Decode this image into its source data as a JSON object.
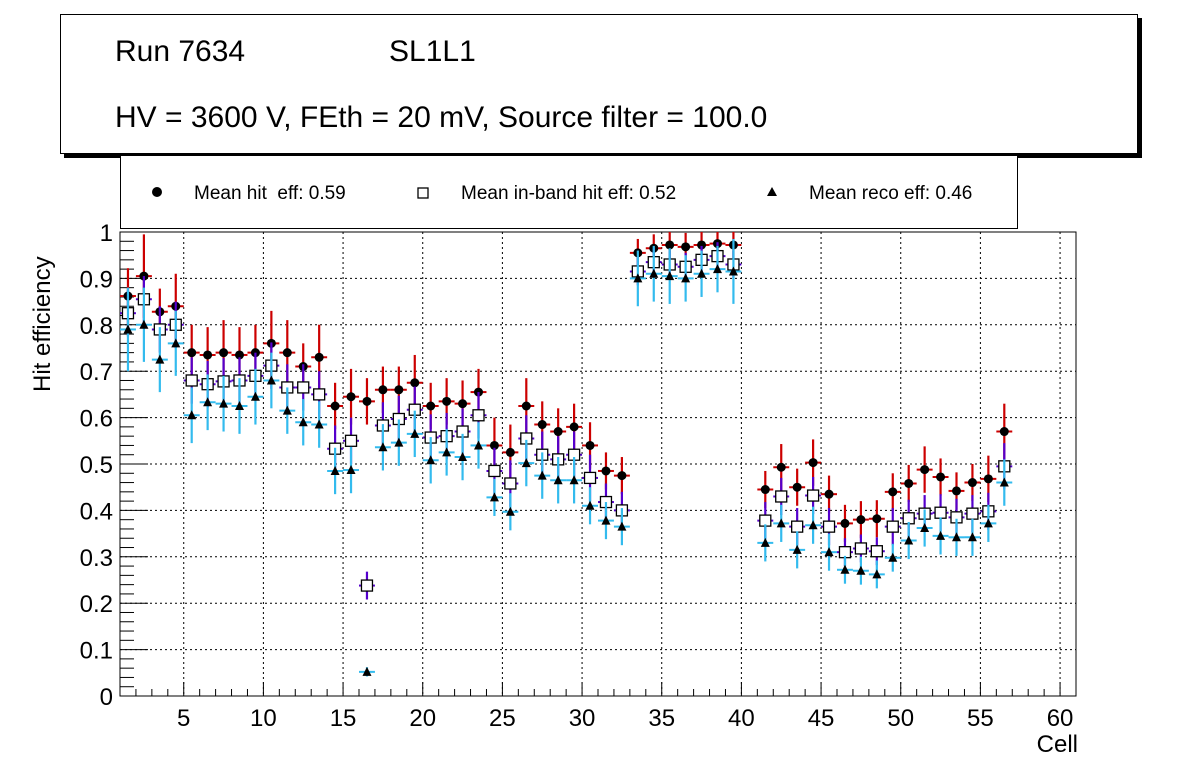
{
  "header": {
    "run_label": "Run 7634",
    "layer_label": "SL1L1",
    "conditions": "HV = 3600 V, FEth = 20 mV, Source filter = 100.0"
  },
  "legend": {
    "hit": "Mean hit  eff: 0.59",
    "inband": "Mean in-band hit eff: 0.52",
    "reco": "Mean reco eff: 0.46"
  },
  "colors": {
    "hit_marker": "#000000",
    "hit_error": "#cc0000",
    "inband_error": "#5500cc",
    "reco_error": "#33bbee"
  },
  "chart_data": {
    "type": "scatter",
    "title": "",
    "xlabel": "Cell",
    "ylabel": "Hit efficiency",
    "xlim": [
      1,
      61
    ],
    "ylim": [
      0,
      1
    ],
    "grid": true,
    "x_ticks": [
      5,
      10,
      15,
      20,
      25,
      30,
      35,
      40,
      45,
      50,
      55,
      60
    ],
    "x_tick_labels": [
      "5",
      "10",
      "15",
      "20",
      "25",
      "30",
      "35",
      "40",
      "45",
      "50",
      "55",
      "60"
    ],
    "y_ticks": [
      0,
      0.1,
      0.2,
      0.3,
      0.4,
      0.5,
      0.6,
      0.7,
      0.8,
      0.9,
      1
    ],
    "y_tick_labels": [
      "0",
      "0.1",
      "0.2",
      "0.3",
      "0.4",
      "0.5",
      "0.6",
      "0.7",
      "0.8",
      "0.9",
      "1"
    ],
    "series": [
      {
        "name": "Mean hit  eff: 0.59",
        "marker": "circle",
        "points": [
          [
            1.5,
            0.862,
            0.06
          ],
          [
            2.5,
            0.905,
            0.09
          ],
          [
            3.5,
            0.828,
            0.05
          ],
          [
            4.5,
            0.84,
            0.07
          ],
          [
            5.5,
            0.74,
            0.06
          ],
          [
            6.5,
            0.735,
            0.06
          ],
          [
            7.5,
            0.74,
            0.07
          ],
          [
            8.5,
            0.735,
            0.06
          ],
          [
            9.5,
            0.74,
            0.06
          ],
          [
            10.5,
            0.76,
            0.07
          ],
          [
            11.5,
            0.74,
            0.07
          ],
          [
            12.5,
            0.71,
            0.05
          ],
          [
            13.5,
            0.73,
            0.07
          ],
          [
            14.5,
            0.625,
            0.05
          ],
          [
            15.5,
            0.645,
            0.06
          ],
          [
            16.5,
            0.635,
            0.05
          ],
          [
            17.5,
            0.66,
            0.05
          ],
          [
            18.5,
            0.66,
            0.05
          ],
          [
            19.5,
            0.675,
            0.06
          ],
          [
            20.5,
            0.625,
            0.05
          ],
          [
            21.5,
            0.635,
            0.05
          ],
          [
            22.5,
            0.63,
            0.05
          ],
          [
            23.5,
            0.655,
            0.05
          ],
          [
            24.5,
            0.54,
            0.06
          ],
          [
            25.5,
            0.525,
            0.06
          ],
          [
            26.5,
            0.625,
            0.06
          ],
          [
            27.5,
            0.585,
            0.05
          ],
          [
            28.5,
            0.57,
            0.05
          ],
          [
            29.5,
            0.58,
            0.05
          ],
          [
            30.5,
            0.54,
            0.05
          ],
          [
            31.5,
            0.485,
            0.04
          ],
          [
            32.5,
            0.475,
            0.04
          ],
          [
            33.5,
            0.955,
            0.03
          ],
          [
            34.5,
            0.965,
            0.03
          ],
          [
            35.5,
            0.972,
            0.03
          ],
          [
            36.5,
            0.968,
            0.03
          ],
          [
            37.5,
            0.972,
            0.03
          ],
          [
            38.5,
            0.975,
            0.03
          ],
          [
            39.5,
            0.972,
            0.03
          ],
          [
            41.5,
            0.445,
            0.04
          ],
          [
            42.5,
            0.493,
            0.05
          ],
          [
            43.5,
            0.45,
            0.04
          ],
          [
            44.5,
            0.503,
            0.05
          ],
          [
            45.5,
            0.435,
            0.04
          ],
          [
            46.5,
            0.372,
            0.04
          ],
          [
            47.5,
            0.38,
            0.04
          ],
          [
            48.5,
            0.382,
            0.04
          ],
          [
            49.5,
            0.44,
            0.04
          ],
          [
            50.5,
            0.458,
            0.04
          ],
          [
            51.5,
            0.488,
            0.05
          ],
          [
            52.5,
            0.472,
            0.04
          ],
          [
            53.5,
            0.442,
            0.04
          ],
          [
            54.5,
            0.46,
            0.04
          ],
          [
            55.5,
            0.468,
            0.05
          ],
          [
            56.5,
            0.57,
            0.06
          ]
        ]
      },
      {
        "name": "Mean in-band hit eff: 0.52",
        "marker": "open-square",
        "points": [
          [
            1.5,
            0.825,
            0.05
          ],
          [
            2.5,
            0.855,
            0.05
          ],
          [
            3.5,
            0.79,
            0.05
          ],
          [
            4.5,
            0.8,
            0.05
          ],
          [
            5.5,
            0.68,
            0.05
          ],
          [
            6.5,
            0.672,
            0.05
          ],
          [
            7.5,
            0.678,
            0.05
          ],
          [
            8.5,
            0.68,
            0.05
          ],
          [
            9.5,
            0.69,
            0.05
          ],
          [
            10.5,
            0.712,
            0.05
          ],
          [
            11.5,
            0.665,
            0.05
          ],
          [
            12.5,
            0.665,
            0.05
          ],
          [
            13.5,
            0.65,
            0.05
          ],
          [
            14.5,
            0.533,
            0.05
          ],
          [
            15.5,
            0.55,
            0.05
          ],
          [
            16.5,
            0.238,
            0.03
          ],
          [
            17.5,
            0.583,
            0.05
          ],
          [
            18.5,
            0.597,
            0.05
          ],
          [
            19.5,
            0.617,
            0.05
          ],
          [
            20.5,
            0.557,
            0.05
          ],
          [
            21.5,
            0.56,
            0.05
          ],
          [
            22.5,
            0.57,
            0.05
          ],
          [
            23.5,
            0.605,
            0.05
          ],
          [
            24.5,
            0.485,
            0.05
          ],
          [
            25.5,
            0.458,
            0.05
          ],
          [
            26.5,
            0.555,
            0.05
          ],
          [
            27.5,
            0.52,
            0.05
          ],
          [
            28.5,
            0.51,
            0.05
          ],
          [
            29.5,
            0.52,
            0.05
          ],
          [
            30.5,
            0.47,
            0.05
          ],
          [
            31.5,
            0.418,
            0.04
          ],
          [
            32.5,
            0.4,
            0.04
          ],
          [
            33.5,
            0.915,
            0.03
          ],
          [
            34.5,
            0.935,
            0.03
          ],
          [
            35.5,
            0.93,
            0.03
          ],
          [
            36.5,
            0.925,
            0.03
          ],
          [
            37.5,
            0.94,
            0.03
          ],
          [
            38.5,
            0.948,
            0.03
          ],
          [
            39.5,
            0.93,
            0.03
          ],
          [
            41.5,
            0.378,
            0.04
          ],
          [
            42.5,
            0.43,
            0.04
          ],
          [
            43.5,
            0.365,
            0.04
          ],
          [
            44.5,
            0.432,
            0.04
          ],
          [
            45.5,
            0.365,
            0.04
          ],
          [
            46.5,
            0.31,
            0.03
          ],
          [
            47.5,
            0.318,
            0.03
          ],
          [
            48.5,
            0.312,
            0.03
          ],
          [
            49.5,
            0.365,
            0.04
          ],
          [
            50.5,
            0.383,
            0.04
          ],
          [
            51.5,
            0.393,
            0.04
          ],
          [
            52.5,
            0.395,
            0.04
          ],
          [
            53.5,
            0.385,
            0.04
          ],
          [
            54.5,
            0.393,
            0.04
          ],
          [
            55.5,
            0.398,
            0.04
          ],
          [
            56.5,
            0.495,
            0.05
          ]
        ]
      },
      {
        "name": "Mean reco eff: 0.46",
        "marker": "triangle",
        "points": [
          [
            1.5,
            0.79,
            0.09
          ],
          [
            2.5,
            0.8,
            0.08
          ],
          [
            3.5,
            0.725,
            0.07
          ],
          [
            4.5,
            0.76,
            0.07
          ],
          [
            5.5,
            0.605,
            0.06
          ],
          [
            6.5,
            0.633,
            0.06
          ],
          [
            7.5,
            0.63,
            0.06
          ],
          [
            8.5,
            0.625,
            0.06
          ],
          [
            9.5,
            0.645,
            0.06
          ],
          [
            10.5,
            0.68,
            0.06
          ],
          [
            11.5,
            0.615,
            0.05
          ],
          [
            12.5,
            0.59,
            0.05
          ],
          [
            13.5,
            0.585,
            0.05
          ],
          [
            14.5,
            0.485,
            0.05
          ],
          [
            15.5,
            0.487,
            0.05
          ],
          [
            16.5,
            0.052,
            0.01
          ],
          [
            17.5,
            0.536,
            0.05
          ],
          [
            18.5,
            0.546,
            0.05
          ],
          [
            19.5,
            0.565,
            0.05
          ],
          [
            20.5,
            0.508,
            0.05
          ],
          [
            21.5,
            0.525,
            0.05
          ],
          [
            22.5,
            0.515,
            0.05
          ],
          [
            23.5,
            0.54,
            0.05
          ],
          [
            24.5,
            0.428,
            0.04
          ],
          [
            25.5,
            0.397,
            0.04
          ],
          [
            26.5,
            0.502,
            0.05
          ],
          [
            27.5,
            0.475,
            0.05
          ],
          [
            28.5,
            0.465,
            0.05
          ],
          [
            29.5,
            0.465,
            0.05
          ],
          [
            30.5,
            0.41,
            0.04
          ],
          [
            31.5,
            0.378,
            0.04
          ],
          [
            32.5,
            0.365,
            0.04
          ],
          [
            33.5,
            0.9,
            0.06
          ],
          [
            34.5,
            0.91,
            0.06
          ],
          [
            35.5,
            0.905,
            0.06
          ],
          [
            36.5,
            0.9,
            0.05
          ],
          [
            37.5,
            0.91,
            0.05
          ],
          [
            38.5,
            0.92,
            0.05
          ],
          [
            39.5,
            0.915,
            0.07
          ],
          [
            41.5,
            0.33,
            0.04
          ],
          [
            42.5,
            0.372,
            0.04
          ],
          [
            43.5,
            0.315,
            0.04
          ],
          [
            44.5,
            0.368,
            0.04
          ],
          [
            45.5,
            0.31,
            0.04
          ],
          [
            46.5,
            0.272,
            0.03
          ],
          [
            47.5,
            0.27,
            0.03
          ],
          [
            48.5,
            0.262,
            0.03
          ],
          [
            49.5,
            0.298,
            0.03
          ],
          [
            50.5,
            0.335,
            0.04
          ],
          [
            51.5,
            0.362,
            0.04
          ],
          [
            52.5,
            0.345,
            0.04
          ],
          [
            53.5,
            0.342,
            0.04
          ],
          [
            54.5,
            0.342,
            0.04
          ],
          [
            55.5,
            0.372,
            0.04
          ],
          [
            56.5,
            0.46,
            0.05
          ]
        ]
      }
    ]
  }
}
